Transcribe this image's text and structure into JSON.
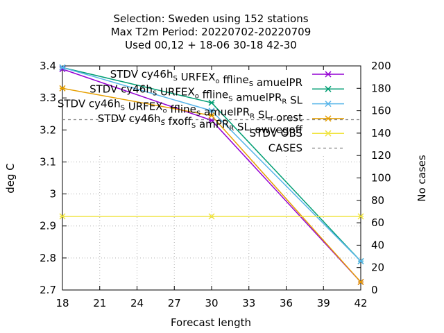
{
  "chart_data": {
    "type": "line",
    "title_lines": [
      "Selection: Sweden using   152 stations",
      "Max T2m   Period: 20220702-20220709",
      "Used  00,12  + 18-06 30-18 42-30"
    ],
    "xlabel": "Forecast length",
    "ylabel": "deg C",
    "y2label": "No cases",
    "xlim": [
      18,
      42
    ],
    "ylim": [
      2.7,
      3.4
    ],
    "y2lim": [
      0,
      200
    ],
    "xticks": [
      "18",
      "21",
      "24",
      "27",
      "30",
      "33",
      "36",
      "39",
      "42"
    ],
    "yticks": [
      "2.7",
      "2.8",
      "2.9",
      "3",
      "3.1",
      "3.2",
      "3.3",
      "3.4"
    ],
    "y2ticks": [
      "0",
      "20",
      "40",
      "60",
      "80",
      "100",
      "120",
      "140",
      "160",
      "180",
      "200"
    ],
    "x": [
      18,
      30,
      42
    ],
    "grid": true,
    "legend_position": "top-right",
    "series": [
      {
        "name": "STDV cy46h_S URFEX_o ffline_S amuelPR",
        "values": [
          3.39,
          3.23,
          2.725
        ],
        "color": "#9400d3",
        "marker": "x"
      },
      {
        "name": "STDV cy46h_S URFEX_o ffline_S amuelPR_R SL",
        "values": [
          3.395,
          3.285,
          2.79
        ],
        "color": "#009e73",
        "marker": "x"
      },
      {
        "name": "STDV cy46h_S URFEX_o ffline_S amuelPR_R SL_f orest",
        "values": [
          3.395,
          3.26,
          2.79
        ],
        "color": "#56b4e9",
        "marker": "x"
      },
      {
        "name": "STDV cy46h_S fxoff_S amPR_R SL_l owvegoff",
        "values": [
          3.33,
          3.245,
          2.725
        ],
        "color": "#e69f00",
        "marker": "x"
      },
      {
        "name": "STDV OBS",
        "values": [
          2.93,
          2.93,
          2.93
        ],
        "color": "#f0e442",
        "marker": "x"
      },
      {
        "name": "CASES",
        "values": [
          152,
          152,
          152
        ],
        "axis": "y2",
        "color": "#808080",
        "dash": true
      }
    ]
  }
}
